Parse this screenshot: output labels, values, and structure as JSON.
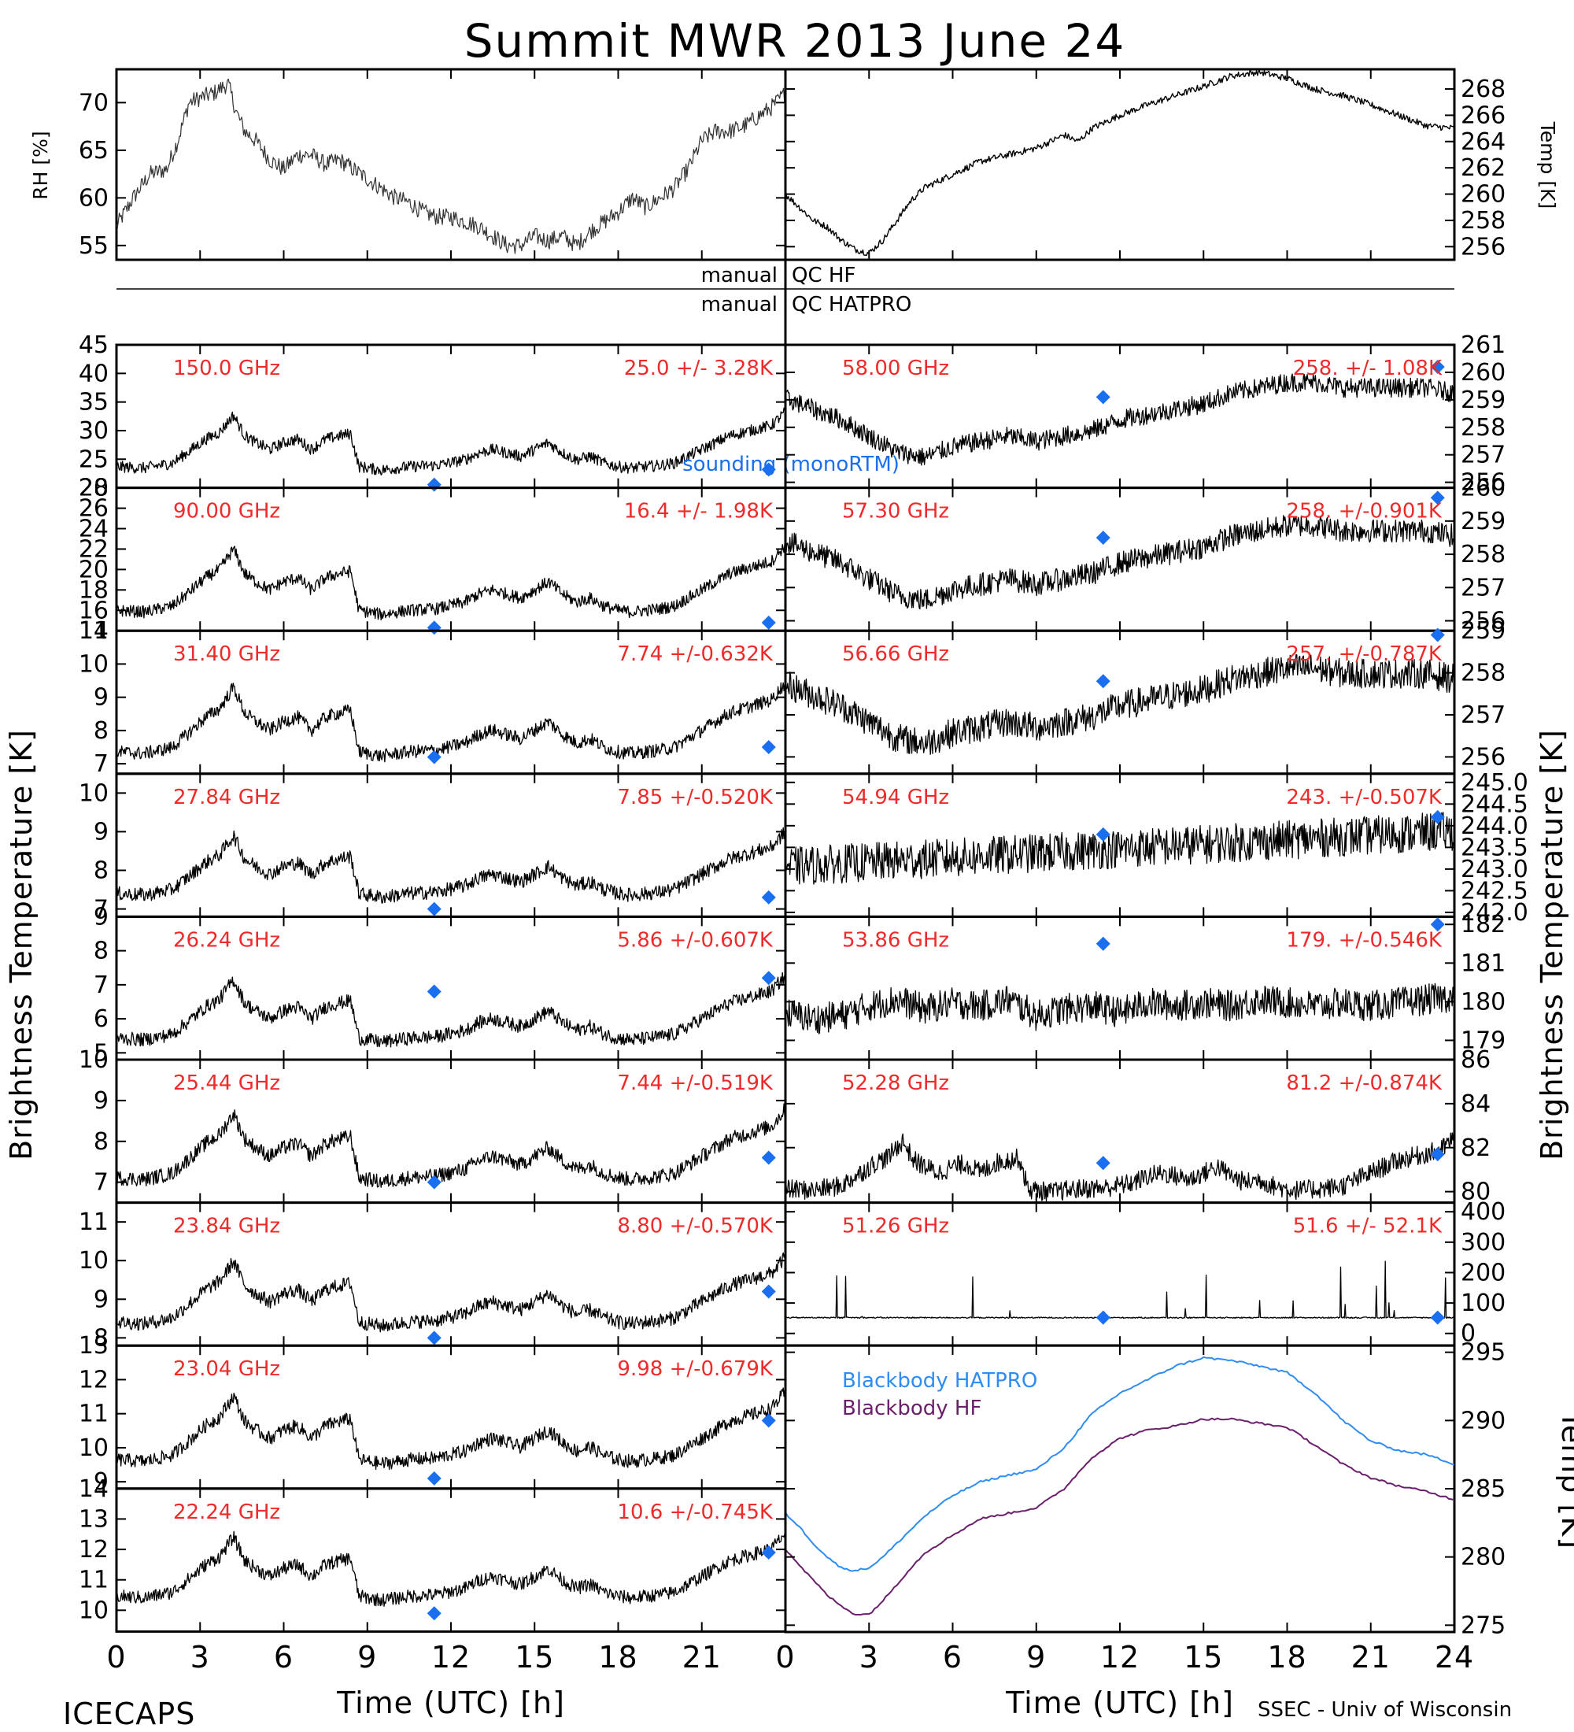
{
  "title": "Summit MWR 2013 June 24",
  "footer": {
    "left": "ICECAPS",
    "right": "SSEC - Univ of Wisconsin",
    "xlabel_left": "Time (UTC) [h]",
    "xlabel_right": "Time (UTC) [h]"
  },
  "axis_labels": {
    "rh": "RH [%]",
    "temp_top": "Temp [K]",
    "bt_left": "Brightness Temperature [K]",
    "bt_right": "Brightness Temperature [K]",
    "temp_bottom": "Temp [K]"
  },
  "qc": {
    "line1_left": "manual",
    "line1_right": "QC HF",
    "line2_left": "manual",
    "line2_right": "QC HATPRO"
  },
  "colors": {
    "channel_text": "#ee2a2a",
    "sounding": "#1a6ef0",
    "blackbody_hatpro": "#2f8cf2",
    "blackbody_hf": "#6b1f6b",
    "trace": "#000000"
  },
  "chart_data": [
    {
      "type": "line",
      "panel": "rh",
      "xlabel": "",
      "ylabel": "RH [%]",
      "xlim": [
        0,
        24
      ],
      "ylim": [
        53.5,
        73.5
      ],
      "yticks": [
        55,
        60,
        65,
        70
      ],
      "noise": 0.9,
      "x": [
        0,
        0.6,
        1.2,
        1.8,
        2.2,
        2.6,
        3.0,
        3.5,
        4.0,
        4.3,
        4.6,
        5.0,
        5.5,
        6.0,
        6.5,
        7.0,
        7.5,
        8.0,
        8.5,
        9.0,
        9.5,
        10.0,
        10.5,
        11.0,
        11.5,
        12.0,
        12.5,
        13.0,
        13.5,
        14.0,
        14.5,
        15.0,
        15.5,
        16.0,
        16.5,
        17.0,
        17.5,
        18.0,
        18.5,
        19.0,
        19.5,
        20.0,
        20.5,
        21.0,
        21.5,
        22.0,
        22.5,
        23.0,
        23.5,
        24.0
      ],
      "y": [
        57,
        60,
        62.5,
        63,
        66,
        70,
        70.5,
        71,
        72,
        69,
        67,
        66,
        64,
        63,
        64.5,
        64.5,
        63.5,
        64,
        63,
        62,
        61,
        60,
        59.5,
        58.5,
        58,
        58,
        57.5,
        57,
        56,
        55,
        55,
        56,
        55.5,
        56,
        55,
        56.5,
        57.5,
        58.5,
        60,
        59,
        60,
        61,
        63,
        66,
        67,
        67,
        67.5,
        68.5,
        69.5,
        71
      ]
    },
    {
      "type": "line",
      "panel": "temp_top",
      "xlabel": "",
      "ylabel": "Temp [K]",
      "xlim": [
        0,
        24
      ],
      "ylim": [
        255,
        269.5
      ],
      "yticks": [
        256,
        258,
        260,
        262,
        264,
        266,
        268
      ],
      "noise": 0.25,
      "x": [
        0,
        0.5,
        1.0,
        1.5,
        2.0,
        2.5,
        3.0,
        3.5,
        4.0,
        4.5,
        5.0,
        6.0,
        7.0,
        8.0,
        9.0,
        10.0,
        10.5,
        11.0,
        12.0,
        13.0,
        14.0,
        15.0,
        16.0,
        17.0,
        18.0,
        19.0,
        20.0,
        21.0,
        22.0,
        23.0,
        24.0
      ],
      "y": [
        260,
        259,
        258,
        257.5,
        256.5,
        255.8,
        255.5,
        256.5,
        258,
        259.5,
        260.5,
        261.5,
        262.5,
        263,
        263.5,
        264.5,
        264,
        265,
        266,
        266.8,
        267.5,
        268.2,
        269,
        269.3,
        268.8,
        268,
        267.5,
        266.8,
        266,
        265.2,
        265
      ]
    }
  ],
  "bt_left": [
    {
      "label": "150.0 GHz",
      "stat": "25.0 +/-  3.28K",
      "ylim": [
        20,
        45
      ],
      "yticks": [
        20,
        25,
        30,
        35,
        40,
        45
      ],
      "base": 22.5,
      "amp": 12,
      "noise": 1.0,
      "sounding": [
        [
          11.4,
          20.2
        ],
        [
          23.4,
          23.2
        ]
      ],
      "note": "sounding (monoRTM)"
    },
    {
      "label": "90.00 GHz",
      "stat": "16.4 +/-  1.98K",
      "ylim": [
        14,
        28
      ],
      "yticks": [
        14,
        16,
        18,
        20,
        22,
        24,
        26,
        28
      ],
      "base": 15.2,
      "amp": 8,
      "noise": 0.6,
      "sounding": [
        [
          11.4,
          14.0
        ],
        [
          23.4,
          14.8
        ]
      ]
    },
    {
      "label": "31.40 GHz",
      "stat": "7.74 +/-0.632K",
      "ylim": [
        6.7,
        11
      ],
      "yticks": [
        7,
        8,
        9,
        10,
        11
      ],
      "base": 7.1,
      "amp": 2.6,
      "noise": 0.2,
      "sounding": [
        [
          11.4,
          7.2
        ],
        [
          23.4,
          7.5
        ]
      ]
    },
    {
      "label": "27.84 GHz",
      "stat": "7.85 +/-0.520K",
      "ylim": [
        6.8,
        10.5
      ],
      "yticks": [
        7,
        8,
        9,
        10
      ],
      "base": 7.2,
      "amp": 2.0,
      "noise": 0.18,
      "sounding": [
        [
          11.4,
          7.0
        ],
        [
          23.4,
          7.3
        ]
      ]
    },
    {
      "label": "26.24 GHz",
      "stat": "5.86 +/-0.607K",
      "ylim": [
        4.8,
        9
      ],
      "yticks": [
        5,
        6,
        7,
        8,
        9
      ],
      "base": 5.2,
      "amp": 2.3,
      "noise": 0.2,
      "sounding": [
        [
          11.4,
          6.8
        ],
        [
          23.4,
          7.2
        ]
      ]
    },
    {
      "label": "25.44 GHz",
      "stat": "7.44 +/-0.519K",
      "ylim": [
        6.5,
        10
      ],
      "yticks": [
        7,
        8,
        9,
        10
      ],
      "base": 6.9,
      "amp": 2.1,
      "noise": 0.18,
      "sounding": [
        [
          11.4,
          7.0
        ],
        [
          23.4,
          7.6
        ]
      ]
    },
    {
      "label": "23.84 GHz",
      "stat": "8.80 +/-0.570K",
      "ylim": [
        7.8,
        11.5
      ],
      "yticks": [
        8,
        9,
        10,
        11
      ],
      "base": 8.2,
      "amp": 2.1,
      "noise": 0.18,
      "sounding": [
        [
          11.4,
          8.0
        ],
        [
          23.4,
          9.2
        ]
      ]
    },
    {
      "label": "23.04 GHz",
      "stat": "9.98 +/-0.679K",
      "ylim": [
        8.8,
        13
      ],
      "yticks": [
        9,
        10,
        11,
        12,
        13
      ],
      "base": 9.4,
      "amp": 2.5,
      "noise": 0.2,
      "sounding": [
        [
          11.4,
          9.1
        ],
        [
          23.4,
          10.8
        ]
      ]
    },
    {
      "label": "22.24 GHz",
      "stat": "10.6 +/-0.745K",
      "ylim": [
        9.3,
        14
      ],
      "yticks": [
        10,
        11,
        12,
        13,
        14
      ],
      "base": 10.2,
      "amp": 2.6,
      "noise": 0.22,
      "sounding": [
        [
          11.4,
          9.9
        ],
        [
          23.4,
          11.9
        ]
      ]
    }
  ],
  "bt_right": [
    {
      "label": "58.00 GHz",
      "stat": "258. +/- 1.08K",
      "ylim": [
        255.8,
        261
      ],
      "yticks": [
        256,
        257,
        258,
        259,
        260,
        261
      ],
      "kind": "temp",
      "noise": 0.35,
      "sounding": [
        [
          11.4,
          259.1
        ],
        [
          23.4,
          260.2
        ]
      ]
    },
    {
      "label": "57.30 GHz",
      "stat": "258. +/-0.901K",
      "ylim": [
        255.7,
        260
      ],
      "yticks": [
        256,
        257,
        258,
        259,
        260
      ],
      "kind": "temp",
      "noise": 0.35,
      "sounding": [
        [
          11.4,
          258.5
        ],
        [
          23.4,
          259.7
        ]
      ]
    },
    {
      "label": "56.66 GHz",
      "stat": "257. +/-0.787K",
      "ylim": [
        255.6,
        259
      ],
      "yticks": [
        256,
        257,
        258,
        259
      ],
      "kind": "temp",
      "noise": 0.35,
      "sounding": [
        [
          11.4,
          257.8
        ],
        [
          23.4,
          258.9
        ]
      ]
    },
    {
      "label": "54.94 GHz",
      "stat": "243. +/-0.507K",
      "ylim": [
        241.9,
        245.2
      ],
      "yticks": [
        242.0,
        242.5,
        243.0,
        243.5,
        244.0,
        244.5,
        245.0
      ],
      "tick_labels": [
        "242.0",
        "242.5",
        "243.0",
        "243.5",
        "244.0",
        "244.5",
        "245.0"
      ],
      "kind": "flat",
      "noise": 0.45,
      "sounding": [
        [
          11.4,
          243.8
        ],
        [
          23.4,
          244.2
        ]
      ]
    },
    {
      "label": "53.86 GHz",
      "stat": "179. +/-0.546K",
      "ylim": [
        178.5,
        182.2
      ],
      "yticks": [
        179,
        180,
        181,
        182
      ],
      "kind": "wavy",
      "noise": 0.4,
      "sounding": [
        [
          11.4,
          181.5
        ],
        [
          23.4,
          182.0
        ]
      ]
    },
    {
      "label": "52.28 GHz",
      "stat": "81.2 +/-0.874K",
      "ylim": [
        79.5,
        86
      ],
      "yticks": [
        80,
        82,
        84,
        86
      ],
      "kind": "humid",
      "noise": 0.45,
      "sounding": [
        [
          11.4,
          81.3
        ],
        [
          23.4,
          81.7
        ]
      ]
    },
    {
      "label": "51.26 GHz",
      "stat": "51.6 +/- 52.1K",
      "ylim": [
        -40,
        430
      ],
      "yticks": [
        0,
        100,
        200,
        300,
        400
      ],
      "kind": "spiky",
      "noise": 2,
      "sounding": [
        [
          11.4,
          52
        ],
        [
          23.4,
          52
        ]
      ]
    }
  ],
  "blackbody": {
    "type": "line",
    "panel": "temp_bottom",
    "xlabel": "",
    "ylabel": "Temp [K]",
    "xlim": [
      0,
      24
    ],
    "ylim": [
      274.5,
      295.5
    ],
    "yticks": [
      275,
      280,
      285,
      290,
      295
    ],
    "x": [
      0,
      0.5,
      1,
      1.5,
      2,
      2.5,
      3,
      3.5,
      4,
      4.5,
      5,
      6,
      7,
      8,
      9,
      10,
      11,
      12,
      13,
      14,
      15,
      16,
      17,
      18,
      19,
      20,
      21,
      22,
      23,
      24
    ],
    "series": [
      {
        "name": "Blackbody HATPRO",
        "values": [
          283.2,
          282.2,
          281.0,
          280.0,
          279.2,
          279.0,
          279.2,
          280.0,
          281.0,
          282.0,
          283.0,
          284.5,
          285.5,
          286.0,
          286.4,
          288.0,
          290.5,
          292.0,
          293.0,
          294.0,
          294.6,
          294.4,
          294.0,
          293.5,
          292.0,
          290.0,
          288.5,
          287.8,
          287.5,
          286.8
        ]
      },
      {
        "name": "Blackbody HF",
        "values": [
          280.6,
          279.4,
          278.3,
          277.2,
          276.4,
          275.8,
          275.8,
          276.8,
          278.0,
          279.2,
          280.3,
          281.6,
          282.8,
          283.2,
          283.6,
          285.0,
          287.3,
          288.7,
          289.3,
          289.6,
          290.1,
          290.1,
          289.8,
          289.5,
          288.2,
          286.8,
          285.8,
          285.2,
          284.8,
          284.2
        ]
      }
    ]
  },
  "bt_xticks_left": {
    "values": [
      0,
      3,
      6,
      9,
      12,
      15,
      18,
      21
    ],
    "labels": [
      "0",
      "3",
      "6",
      "9",
      "12",
      "15",
      "18",
      "21"
    ]
  },
  "bt_xticks_right": {
    "values": [
      0,
      3,
      6,
      9,
      12,
      15,
      18,
      21,
      24
    ],
    "labels": [
      "0",
      "3",
      "6",
      "9",
      "12",
      "15",
      "18",
      "21",
      "24"
    ]
  }
}
